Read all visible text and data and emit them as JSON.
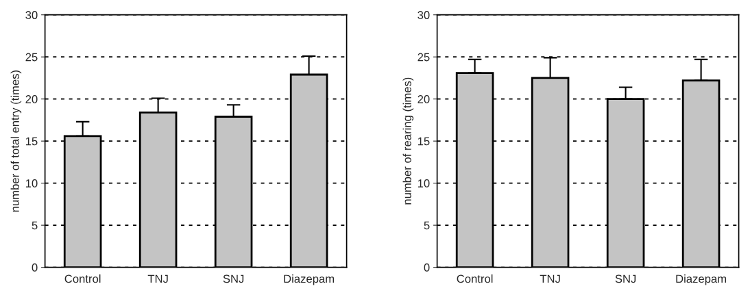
{
  "chart_data": [
    {
      "type": "bar",
      "categories": [
        "Control",
        "TNJ",
        "SNJ",
        "Diazepam"
      ],
      "values": [
        15.6,
        18.4,
        17.9,
        22.9
      ],
      "errors": [
        [
          15.6,
          17.3
        ],
        [
          18.4,
          20.1
        ],
        [
          17.9,
          19.3
        ],
        [
          22.9,
          25.1
        ]
      ],
      "color": "#c4c4c4",
      "ylabel": "number of total entry (times)",
      "ylim": [
        0,
        30
      ],
      "yticks": [
        0,
        5,
        10,
        15,
        20,
        25,
        30
      ],
      "grid": "y",
      "line_style": "dashed"
    },
    {
      "type": "bar",
      "categories": [
        "Control",
        "TNJ",
        "SNJ",
        "Diazepam"
      ],
      "values": [
        23.1,
        22.5,
        20.0,
        22.2
      ],
      "errors": [
        [
          23.1,
          24.7
        ],
        [
          22.5,
          24.9
        ],
        [
          20.0,
          21.4
        ],
        [
          22.2,
          24.7
        ]
      ],
      "color": "#c4c4c4",
      "ylabel": "number of rearing (times)",
      "ylim": [
        0,
        30
      ],
      "yticks": [
        0,
        5,
        10,
        15,
        20,
        25,
        30
      ],
      "grid": "y",
      "line_style": "dashed"
    }
  ]
}
